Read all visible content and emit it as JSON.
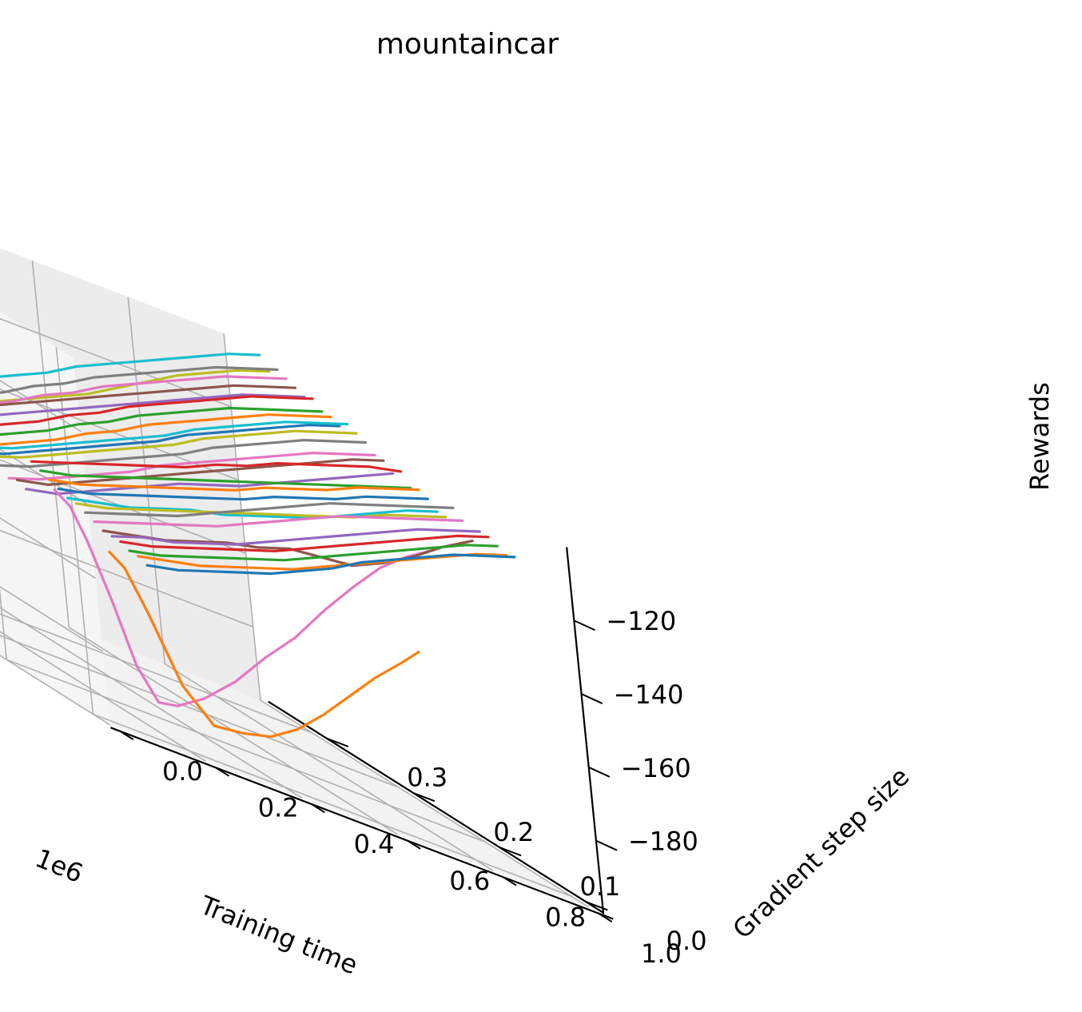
{
  "chart_data": {
    "type": "line",
    "projection": "3d",
    "title": "mountaincar",
    "xlabel": "Training time",
    "ylabel": "Gradient step size",
    "zlabel": "Rewards",
    "x_offset_label": "1e6",
    "x_ticks": [
      "0.0",
      "0.2",
      "0.4",
      "0.6",
      "0.8",
      "1.0"
    ],
    "y_ticks": [
      "0.0",
      "0.1",
      "0.2",
      "0.3"
    ],
    "z_ticks": [
      "−120",
      "−140",
      "−160",
      "−180"
    ],
    "x_range": [
      0,
      1.0
    ],
    "y_range": [
      -0.02,
      0.36
    ],
    "z_range": [
      -200,
      -100
    ],
    "grid": true,
    "legend": "none",
    "palette": [
      "#1f77b4",
      "#ff7f0e",
      "#2ca02c",
      "#d62728",
      "#9467bd",
      "#8c564b",
      "#e377c2",
      "#7f7f7f",
      "#bcbd22",
      "#17becf"
    ],
    "curve_x_span": [
      0.15,
      0.95
    ],
    "series": [
      {
        "step_size": 0.0,
        "rewards": [
          -152,
          -150,
          -147,
          -144,
          -141,
          -137,
          -133,
          -128,
          -124,
          -120,
          -116,
          -113,
          -110
        ]
      },
      {
        "step_size": 0.01,
        "rewards": [
          -151,
          -149,
          -147,
          -144,
          -141,
          -138,
          -134,
          -130,
          -126,
          -122,
          -118,
          -114,
          -111
        ]
      },
      {
        "step_size": 0.02,
        "rewards": [
          -151,
          -149,
          -146,
          -143,
          -140,
          -137,
          -133,
          -129,
          -125,
          -121,
          -117,
          -113,
          -110
        ]
      },
      {
        "step_size": 0.03,
        "rewards": [
          -150,
          -148,
          -145,
          -142,
          -139,
          -136,
          -132,
          -128,
          -124,
          -120,
          -116,
          -112,
          -109
        ]
      },
      {
        "step_size": 0.04,
        "rewards": [
          -150,
          -147,
          -145,
          -142,
          -139,
          -135,
          -131,
          -127,
          -123,
          -119,
          -115,
          -112,
          -109
        ]
      },
      {
        "step_size": 0.05,
        "rewards": [
          -150,
          -148,
          -146,
          -143,
          -140,
          -138,
          -135,
          -134,
          -133,
          -129,
          -124,
          -118,
          -113
        ]
      },
      {
        "step_size": 0.06,
        "rewards": [
          -149,
          -146,
          -143,
          -140,
          -137,
          -133,
          -129,
          -125,
          -121,
          -118,
          -115,
          -112,
          -109
        ]
      },
      {
        "step_size": 0.07,
        "rewards": [
          -148,
          -145,
          -142,
          -139,
          -135,
          -131,
          -127,
          -123,
          -119,
          -116,
          -113,
          -110,
          -107
        ]
      },
      {
        "step_size": 0.08,
        "rewards": [
          -147,
          -145,
          -142,
          -139,
          -136,
          -133,
          -130,
          -127,
          -124,
          -121,
          -117,
          -114,
          -111
        ]
      },
      {
        "step_size": 0.09,
        "rewards": [
          -147,
          -145,
          -143,
          -140,
          -137,
          -135,
          -132,
          -129,
          -126,
          -122,
          -118,
          -114,
          -111
        ]
      },
      {
        "step_size": 0.1,
        "rewards": [
          -146,
          -144,
          -141,
          -138,
          -135,
          -132,
          -129,
          -125,
          -122,
          -119,
          -115,
          -112,
          -109
        ]
      },
      {
        "step_size": 0.11,
        "rewards": [
          -145,
          -143,
          -140,
          -137,
          -134,
          -131,
          -128,
          -124,
          -121,
          -118,
          -114,
          -111,
          -108
        ]
      },
      {
        "step_size": 0.12,
        "rewards": [
          -144,
          -142,
          -139,
          -136,
          -133,
          -130,
          -127,
          -124,
          -121,
          -118,
          -115,
          -112,
          -109
        ]
      },
      {
        "step_size": 0.13,
        "rewards": [
          -143,
          -140,
          -137,
          -134,
          -131,
          -128,
          -124,
          -121,
          -117,
          -114,
          -111,
          -108,
          -106
        ]
      },
      {
        "step_size": 0.14,
        "rewards": [
          -152,
          -150,
          -146,
          -142,
          -138,
          -134,
          -131,
          -128,
          -124,
          -120,
          -116,
          -112,
          -108
        ]
      },
      {
        "step_size": 0.15,
        "rewards": [
          -151,
          -149,
          -145,
          -141,
          -137,
          -133,
          -129,
          -125,
          -121,
          -117,
          -113,
          -109,
          -106
        ]
      },
      {
        "step_size": 0.16,
        "rewards": [
          -152,
          -149,
          -145,
          -141,
          -137,
          -132,
          -128,
          -124,
          -120,
          -116,
          -112,
          -109,
          -106
        ]
      },
      {
        "step_size": 0.17,
        "rewards": [
          -150,
          -147,
          -143,
          -139,
          -135,
          -131,
          -127,
          -122,
          -118,
          -114,
          -110,
          -107,
          -104
        ]
      },
      {
        "step_size": 0.18,
        "rewards": [
          -149,
          -146,
          -142,
          -138,
          -134,
          -130,
          -126,
          -121,
          -117,
          -113,
          -109,
          -106,
          -103
        ]
      },
      {
        "step_size": 0.19,
        "rewards": [
          -148,
          -145,
          -141,
          -137,
          -133,
          -129,
          -125,
          -120,
          -116,
          -112,
          -108,
          -105,
          -102
        ]
      },
      {
        "step_size": 0.2,
        "rewards": [
          -151,
          -148,
          -144,
          -140,
          -136,
          -132,
          -128,
          -123,
          -119,
          -115,
          -111,
          -107,
          -104
        ]
      },
      {
        "step_size": 0.21,
        "rewards": [
          -150,
          -147,
          -143,
          -139,
          -134,
          -130,
          -125,
          -121,
          -117,
          -113,
          -109,
          -106,
          -103
        ]
      },
      {
        "step_size": 0.22,
        "rewards": [
          -149,
          -146,
          -142,
          -138,
          -133,
          -129,
          -124,
          -120,
          -116,
          -112,
          -109,
          -106,
          -103
        ]
      },
      {
        "step_size": 0.23,
        "rewards": [
          -148,
          -145,
          -141,
          -137,
          -132,
          -128,
          -123,
          -119,
          -115,
          -111,
          -107,
          -104,
          -101
        ]
      },
      {
        "step_size": 0.24,
        "rewards": [
          -147,
          -144,
          -140,
          -136,
          -132,
          -128,
          -124,
          -120,
          -116,
          -112,
          -108,
          -105,
          -102
        ]
      },
      {
        "step_size": 0.25,
        "rewards": [
          -146,
          -143,
          -139,
          -135,
          -131,
          -127,
          -123,
          -119,
          -115,
          -111,
          -107,
          -104,
          -101
        ]
      },
      {
        "step_size": 0.26,
        "rewards": [
          -147,
          -144,
          -140,
          -136,
          -131,
          -127,
          -122,
          -118,
          -114,
          -110,
          -106,
          -103,
          -100
        ]
      },
      {
        "step_size": 0.27,
        "rewards": [
          -146,
          -143,
          -139,
          -135,
          -130,
          -126,
          -121,
          -117,
          -113,
          -109,
          -105,
          -102,
          -99
        ]
      },
      {
        "step_size": 0.28,
        "rewards": [
          -147,
          -145,
          -142,
          -139,
          -135,
          -131,
          -127,
          -122,
          -117,
          -112,
          -108,
          -104,
          -101
        ]
      },
      {
        "step_size": 0.29,
        "rewards": [
          -145,
          -142,
          -138,
          -134,
          -130,
          -126,
          -121,
          -117,
          -113,
          -109,
          -105,
          -101,
          -98
        ]
      }
    ],
    "outliers": [
      {
        "step_size": 0.045,
        "color": "#ff7f0e",
        "x": [
          0.15,
          0.18,
          0.22,
          0.28,
          0.34,
          0.4,
          0.46,
          0.52,
          0.58,
          0.64,
          0.7,
          0.76,
          0.8
        ],
        "rewards": [
          -155,
          -158,
          -168,
          -185,
          -193,
          -192,
          -190,
          -185,
          -178,
          -170,
          -162,
          -155,
          -150
        ]
      },
      {
        "step_size": 0.105,
        "color": "#e377c2",
        "x": [
          0.15,
          0.18,
          0.21,
          0.25,
          0.29,
          0.33,
          0.37,
          0.43,
          0.5,
          0.57,
          0.64,
          0.71,
          0.78,
          0.84,
          0.9,
          0.95
        ],
        "rewards": [
          -147,
          -150,
          -158,
          -172,
          -188,
          -196,
          -195,
          -190,
          -182,
          -172,
          -163,
          -152,
          -142,
          -134,
          -128,
          -124
        ]
      }
    ]
  }
}
